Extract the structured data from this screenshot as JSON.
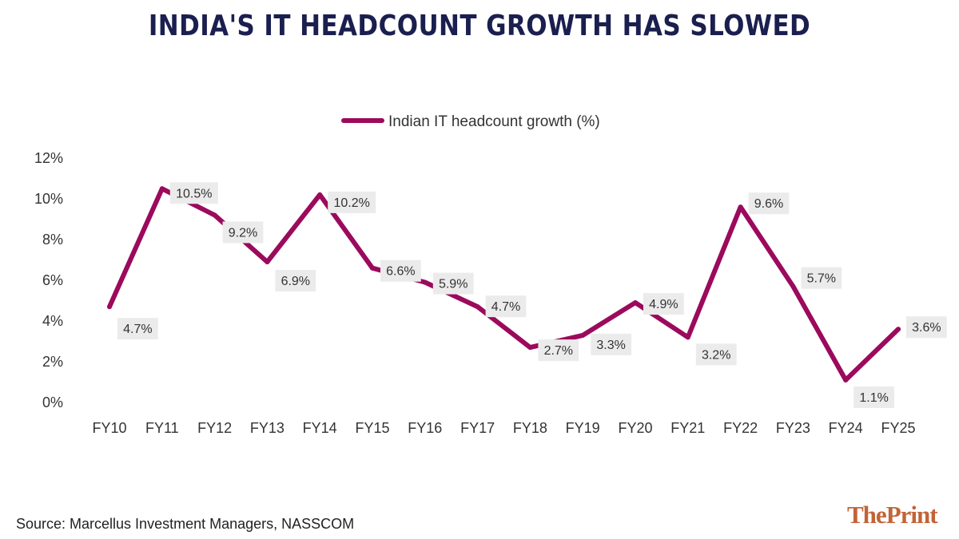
{
  "title": "INDIA'S IT HEADCOUNT GROWTH HAS SLOWED",
  "source": "Source: Marcellus Investment Managers, NASSCOM",
  "logo": {
    "part1": "The",
    "part2": "Print"
  },
  "colors": {
    "line": "#9b0a5c",
    "title": "#1a1f4f",
    "label_bg": "#ebebeb",
    "logo": "#c26437"
  },
  "chart_data": {
    "type": "line",
    "categories": [
      "FY10",
      "FY11",
      "FY12",
      "FY13",
      "FY14",
      "FY15",
      "FY16",
      "FY17",
      "FY18",
      "FY19",
      "FY20",
      "FY21",
      "FY22",
      "FY23",
      "FY24",
      "FY25"
    ],
    "series": [
      {
        "name": "Indian IT headcount growth (%)",
        "values": [
          4.7,
          10.5,
          9.2,
          6.9,
          10.2,
          6.6,
          5.9,
          4.7,
          2.7,
          3.3,
          4.9,
          3.2,
          9.6,
          5.7,
          1.1,
          3.6
        ]
      }
    ],
    "data_labels": [
      "4.7%",
      "10.5%",
      "9.2%",
      "6.9%",
      "10.2%",
      "6.6%",
      "5.9%",
      "4.7%",
      "2.7%",
      "3.3%",
      "4.9%",
      "3.2%",
      "9.6%",
      "5.7%",
      "1.1%",
      "3.6%"
    ],
    "y_ticks": [
      0,
      2,
      4,
      6,
      8,
      10,
      12
    ],
    "y_tick_labels": [
      "0%",
      "2%",
      "4%",
      "6%",
      "8%",
      "10%",
      "12%"
    ],
    "ylim": [
      0,
      12
    ],
    "xlabel": "",
    "ylabel": "",
    "grid": false,
    "legend": "top-center"
  }
}
